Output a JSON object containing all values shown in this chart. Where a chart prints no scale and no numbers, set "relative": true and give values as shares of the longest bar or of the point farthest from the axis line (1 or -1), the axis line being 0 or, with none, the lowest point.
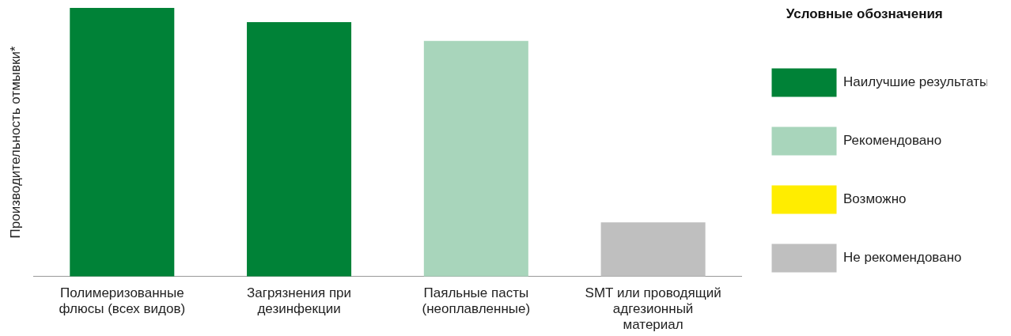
{
  "chart_data": {
    "type": "bar",
    "relative": true,
    "stacked": true,
    "ylabel": "Производительность отмывки*",
    "legend_title": "Условные обозначения",
    "legend": "right",
    "grid": false,
    "categories": [
      "Полимеризованные флюсы (всех видов)",
      "Загрязнения при дезинфекции",
      "Паяльные пасты (неоплавленные)",
      "SMT или проводящий адгезионный материал"
    ],
    "series": [
      {
        "name": "Наилучшие результаты",
        "color": "#008237",
        "values": [
          1,
          0.947,
          null,
          null
        ]
      },
      {
        "name": "Рекомендовано",
        "color": "#a8d5bb",
        "values": [
          null,
          null,
          0.877,
          null
        ]
      },
      {
        "name": "Возможно",
        "color": "#ffed00",
        "values": [
          null,
          null,
          null,
          null
        ]
      },
      {
        "name": "Не рекомендовано",
        "color": "#bfbfbf",
        "values": [
          null,
          null,
          null,
          0.202
        ]
      }
    ]
  }
}
